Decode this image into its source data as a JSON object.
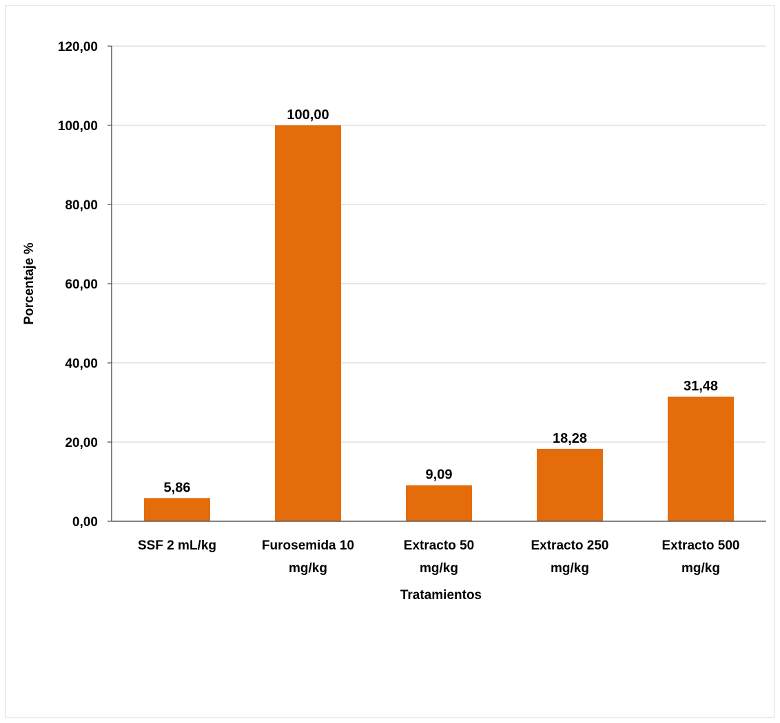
{
  "chart_data": {
    "type": "bar",
    "title": "",
    "xlabel": "Tratamientos",
    "ylabel": "Porcentaje %",
    "ylim": [
      0,
      120
    ],
    "yticks": [
      0,
      20,
      40,
      60,
      80,
      100,
      120
    ],
    "ytick_labels": [
      "0,00",
      "20,00",
      "40,00",
      "60,00",
      "80,00",
      "100,00",
      "120,00"
    ],
    "categories": [
      [
        "SSF 2 mL/kg"
      ],
      [
        "Furosemida 10",
        "mg/kg"
      ],
      [
        "Extracto 50",
        "mg/kg"
      ],
      [
        "Extracto 250",
        "mg/kg"
      ],
      [
        "Extracto 500",
        "mg/kg"
      ]
    ],
    "values": [
      5.86,
      100.0,
      9.09,
      18.28,
      31.48
    ],
    "data_labels": [
      "5,86",
      "100,00",
      "9,09",
      "18,28",
      "31,48"
    ],
    "bar_color": "#e46c0a",
    "grid": true,
    "legend": "none"
  }
}
